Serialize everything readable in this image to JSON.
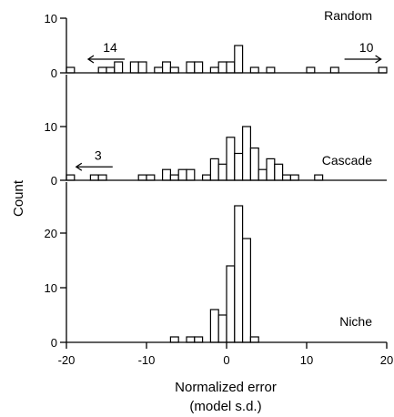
{
  "chart_data": {
    "type": "bar",
    "subtype": "stacked-histogram-panels",
    "xlabel": "Normalized error",
    "xlabel_sub": "(model s.d.)",
    "ylabel": "Count",
    "xlim": [
      -20,
      20
    ],
    "xticks": [
      -20,
      -10,
      0,
      10,
      20
    ],
    "x_tick_labels": [
      "-20",
      "-10",
      "0",
      "10",
      "20"
    ],
    "bin_width": 1,
    "grid": false,
    "colors": {
      "bar_fill": "#ffffff",
      "bar_stroke": "#000000",
      "axis": "#000000"
    },
    "panels": [
      {
        "name": "Random",
        "ylim": [
          0,
          10
        ],
        "yticks": [
          0,
          10
        ],
        "y_tick_labels": [
          "0",
          "10"
        ],
        "bins": [
          {
            "x": -20,
            "count": 1
          },
          {
            "x": -16,
            "count": 1
          },
          {
            "x": -15,
            "count": 1
          },
          {
            "x": -14,
            "count": 2
          },
          {
            "x": -12,
            "count": 2
          },
          {
            "x": -11,
            "count": 2
          },
          {
            "x": -9,
            "count": 1
          },
          {
            "x": -8,
            "count": 2
          },
          {
            "x": -7,
            "count": 1
          },
          {
            "x": -5,
            "count": 2
          },
          {
            "x": -4,
            "count": 2
          },
          {
            "x": -2,
            "count": 1
          },
          {
            "x": -1,
            "count": 2
          },
          {
            "x": 0,
            "count": 2
          },
          {
            "x": 1,
            "count": 5
          },
          {
            "x": 3,
            "count": 1
          },
          {
            "x": 5,
            "count": 1
          },
          {
            "x": 10,
            "count": 1
          },
          {
            "x": 13,
            "count": 1
          },
          {
            "x": 19,
            "count": 1
          }
        ],
        "annotations": [
          {
            "text": "14",
            "direction": "left",
            "x": -15
          },
          {
            "text": "10",
            "direction": "right",
            "x": 17
          }
        ]
      },
      {
        "name": "Cascade",
        "ylim": [
          0,
          10
        ],
        "yticks": [
          0,
          10
        ],
        "y_tick_labels": [
          "0",
          "10"
        ],
        "bins": [
          {
            "x": -20,
            "count": 1
          },
          {
            "x": -17,
            "count": 1
          },
          {
            "x": -16,
            "count": 1
          },
          {
            "x": -11,
            "count": 1
          },
          {
            "x": -10,
            "count": 1
          },
          {
            "x": -8,
            "count": 2
          },
          {
            "x": -7,
            "count": 1
          },
          {
            "x": -6,
            "count": 2
          },
          {
            "x": -5,
            "count": 2
          },
          {
            "x": -3,
            "count": 1
          },
          {
            "x": -2,
            "count": 4
          },
          {
            "x": -1,
            "count": 3
          },
          {
            "x": 0,
            "count": 8
          },
          {
            "x": 1,
            "count": 5
          },
          {
            "x": 2,
            "count": 10
          },
          {
            "x": 3,
            "count": 6
          },
          {
            "x": 4,
            "count": 2
          },
          {
            "x": 5,
            "count": 4
          },
          {
            "x": 6,
            "count": 3
          },
          {
            "x": 7,
            "count": 1
          },
          {
            "x": 8,
            "count": 1
          },
          {
            "x": 11,
            "count": 1
          }
        ],
        "annotations": [
          {
            "text": "3",
            "direction": "left",
            "x": -16.5
          }
        ]
      },
      {
        "name": "Niche",
        "ylim": [
          0,
          30
        ],
        "yticks": [
          0,
          10,
          20
        ],
        "y_tick_labels": [
          "0",
          "10",
          "20"
        ],
        "bins": [
          {
            "x": -7,
            "count": 1
          },
          {
            "x": -5,
            "count": 1
          },
          {
            "x": -4,
            "count": 1
          },
          {
            "x": -2,
            "count": 6
          },
          {
            "x": -1,
            "count": 5
          },
          {
            "x": 0,
            "count": 14
          },
          {
            "x": 1,
            "count": 25
          },
          {
            "x": 2,
            "count": 19
          },
          {
            "x": 3,
            "count": 1
          }
        ],
        "annotations": []
      }
    ]
  }
}
